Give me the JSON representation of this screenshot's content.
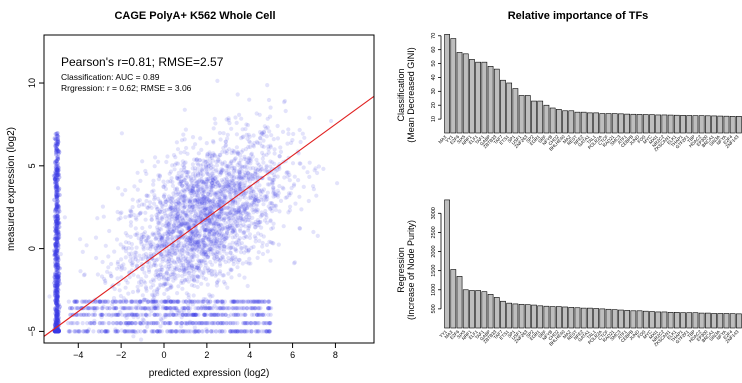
{
  "chart_data": [
    {
      "type": "scatter",
      "title": "CAGE PolyA+ K562 Whole Cell",
      "xlabel": "predicted expression (log2)",
      "ylabel": "measured expression (log2)",
      "xlim": [
        -5.6,
        9.8
      ],
      "ylim": [
        -5.7,
        12.9
      ],
      "xticks": [
        "−4",
        "−2",
        "0",
        "2",
        "4",
        "6",
        "8"
      ],
      "xtick_values": [
        -4,
        -2,
        0,
        2,
        4,
        6,
        8
      ],
      "yticks": [
        "−5",
        "0",
        "5",
        "10"
      ],
      "ytick_values": [
        -5,
        0,
        5,
        10
      ],
      "point_color": "#3a3ae6",
      "fit_line_color": "#e02020",
      "fit_line": {
        "x": [
          -5.6,
          9.8
        ],
        "y": [
          -5.3,
          9.2
        ]
      },
      "annotations": {
        "stats": "Pearson's r=0.81; RMSE=2.57",
        "classification": "Classification: AUC = 0.89",
        "regression": "Rrgression: r = 0.62; RMSE = 3.06"
      },
      "grid": false
    },
    {
      "type": "bar",
      "title": "Relative importance of TFs",
      "ylabel_lines": [
        "Classification",
        "(Mean Decreased GINI)"
      ],
      "ylim": [
        0,
        72
      ],
      "yticks": [
        "10",
        "20",
        "30",
        "40",
        "50",
        "60",
        "70"
      ],
      "ytick_values": [
        10,
        20,
        30,
        40,
        50,
        60,
        70
      ],
      "bar_color": "#bebebe",
      "categories": [
        "MAX",
        "YY1",
        "E2F6",
        "SIX5",
        "NRF1",
        "ELF1",
        "TAF1",
        "GABP",
        "ZBTB33",
        "TAF7",
        "ETS1",
        "SP1",
        "USF1",
        "ZNF263",
        "SP2",
        "EGR1",
        "SRF",
        "NFYB",
        "CHD2",
        "BHLHE40",
        "MAZ",
        "REST",
        "NFE2",
        "GATA1",
        "TAL1",
        "POLR2A",
        "CTCF",
        "RAD21",
        "SMC3",
        "ATF1",
        "CEBPB",
        "JUND",
        "FOS",
        "MYC",
        "MXI1",
        "NR2C2",
        "ZKSCAN1",
        "ELK1",
        "THAP1",
        "GTF2F1",
        "TBP",
        "HDAC2",
        "EP300",
        "BRCA1",
        "SIN3A",
        "NFYA",
        "E2F4",
        "ZNF143"
      ],
      "values": [
        71,
        68,
        58,
        57,
        53,
        51,
        51,
        48,
        46,
        38,
        36,
        32,
        27,
        27,
        23,
        23,
        20,
        18,
        17,
        16,
        16,
        15,
        15,
        14.5,
        14.5,
        14,
        14,
        14,
        13.8,
        13.6,
        13.5,
        13.4,
        13.3,
        13.2,
        13,
        13,
        12.9,
        12.8,
        12.7,
        12.6,
        12.5,
        12.5,
        12.4,
        12.3,
        12.2,
        12.1,
        12,
        12
      ]
    },
    {
      "type": "bar",
      "ylabel_lines": [
        "Regression",
        "(Increase of Node Purity)"
      ],
      "ylim": [
        0,
        3400
      ],
      "yticks": [
        "500",
        "1000",
        "1500",
        "2000",
        "2500",
        "3000"
      ],
      "ytick_values": [
        500,
        1000,
        1500,
        2000,
        2500,
        3000
      ],
      "bar_color": "#bebebe",
      "categories": [
        "YY1",
        "MAX",
        "E2F6",
        "SIX5",
        "NRF1",
        "ELF1",
        "TAF1",
        "GABP",
        "ZBTB33",
        "TAF7",
        "ETS1",
        "SP1",
        "USF1",
        "ZNF263",
        "SP2",
        "EGR1",
        "SRF",
        "NFYB",
        "CHD2",
        "BHLHE40",
        "MAZ",
        "REST",
        "NFE2",
        "GATA1",
        "TAL1",
        "POLR2A",
        "CTCF",
        "RAD21",
        "SMC3",
        "ATF1",
        "CEBPB",
        "JUND",
        "FOS",
        "MYC",
        "MXI1",
        "NR2C2",
        "ZKSCAN1",
        "ELK1",
        "THAP1",
        "GTF2F1",
        "TBP",
        "HDAC2",
        "EP300",
        "BRCA1",
        "SIN3A",
        "NFYA",
        "E2F4",
        "ZNF143"
      ],
      "values": [
        3350,
        1530,
        1350,
        1000,
        980,
        980,
        950,
        880,
        800,
        700,
        650,
        630,
        620,
        610,
        600,
        580,
        570,
        560,
        560,
        550,
        540,
        530,
        520,
        520,
        510,
        500,
        490,
        480,
        470,
        460,
        450,
        450,
        440,
        430,
        420,
        420,
        410,
        410,
        400,
        400,
        400,
        390,
        390,
        380,
        380,
        380,
        375,
        370
      ]
    }
  ]
}
